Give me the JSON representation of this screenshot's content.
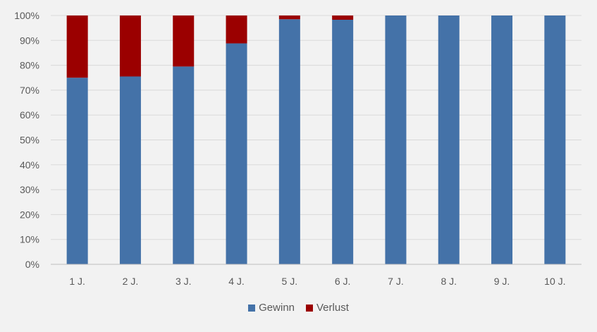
{
  "chart_data": {
    "type": "bar",
    "stacked": true,
    "categories": [
      "1 J.",
      "2 J.",
      "3 J.",
      "4 J.",
      "5 J.",
      "6 J.",
      "7 J.",
      "8 J.",
      "9 J.",
      "10 J."
    ],
    "series": [
      {
        "name": "Gewinn",
        "color": "#4472a8",
        "values": [
          75,
          75.5,
          79.5,
          88.8,
          98.5,
          98.3,
          100,
          100,
          100,
          100
        ]
      },
      {
        "name": "Verlust",
        "color": "#9b0000",
        "values": [
          25,
          24.5,
          20.5,
          11.2,
          1.5,
          1.7,
          0,
          0,
          0,
          0
        ]
      }
    ],
    "y_ticks": [
      "0%",
      "10%",
      "20%",
      "30%",
      "40%",
      "50%",
      "60%",
      "70%",
      "80%",
      "90%",
      "100%"
    ],
    "ylim": [
      0,
      100
    ],
    "grid": true,
    "legend_position": "bottom",
    "title": "",
    "xlabel": "",
    "ylabel": ""
  }
}
